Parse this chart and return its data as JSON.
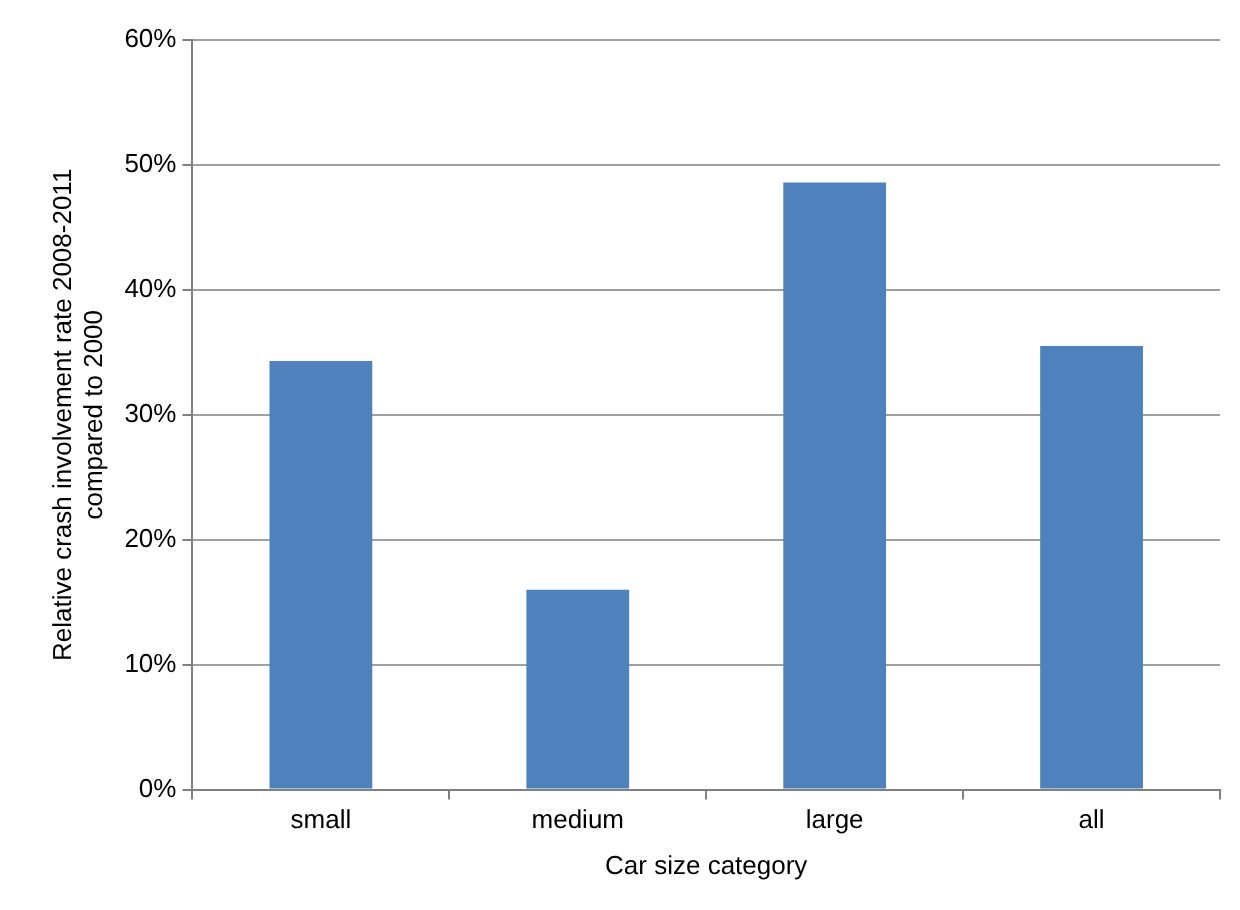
{
  "chart_data": {
    "type": "bar",
    "xlabel": "Car size category",
    "ylabel": "Relative crash involvement rate 2008-2011\ncompared to 2000",
    "categories": [
      "small",
      "medium",
      "large",
      "all"
    ],
    "values": [
      34.3,
      16.0,
      48.6,
      35.5
    ],
    "color": "#4f81bd",
    "ylim": [
      0,
      60
    ],
    "yticks": [
      {
        "value": 0,
        "label": "0%"
      },
      {
        "value": 10,
        "label": "10%"
      },
      {
        "value": 20,
        "label": "20%"
      },
      {
        "value": 30,
        "label": "30%"
      },
      {
        "value": 40,
        "label": "40%"
      },
      {
        "value": 50,
        "label": "50%"
      },
      {
        "value": 60,
        "label": "60%"
      }
    ],
    "grid": "y",
    "legend": false
  }
}
